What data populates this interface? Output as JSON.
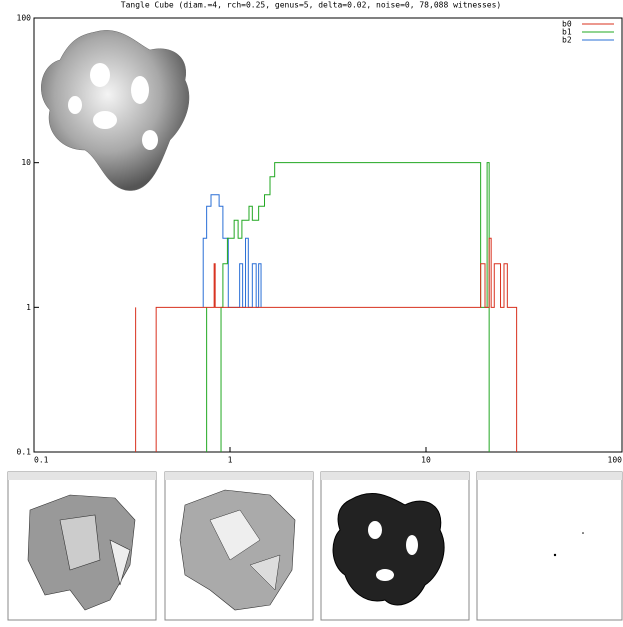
{
  "chart_data": {
    "type": "line",
    "title": "Tangle Cube (diam.=4, rch=0.25, genus=5, delta=0.02, noise=0, 78,088 witnesses)",
    "xlog": true,
    "ylog": true,
    "xlim": [
      0.1,
      100
    ],
    "ylim": [
      0.1,
      100
    ],
    "xticks": [
      0.1,
      1,
      10,
      100
    ],
    "yticks": [
      0.1,
      1,
      10,
      100
    ],
    "legend": "upper right",
    "series": [
      {
        "name": "b2",
        "color": "#2a6fd6",
        "x": [
          0.73,
          0.73,
          0.76,
          0.76,
          0.8,
          0.8,
          0.88,
          0.88,
          0.92,
          0.92,
          0.98,
          0.98,
          1.12,
          1.12,
          1.16,
          1.16,
          1.2,
          1.2,
          1.24,
          1.24,
          1.3,
          1.3,
          1.36,
          1.36,
          1.4,
          1.4,
          1.44,
          1.44
        ],
        "values": [
          1,
          3,
          3,
          5,
          5,
          6,
          6,
          5,
          5,
          3,
          3,
          1,
          1,
          2,
          2,
          1,
          1,
          3,
          3,
          1,
          1,
          2,
          2,
          1,
          1,
          2,
          2,
          1
        ]
      },
      {
        "name": "b1",
        "color": "#22a822",
        "x": [
          0.76,
          0.76,
          null,
          0.9,
          0.9,
          0.92,
          0.92,
          0.97,
          0.97,
          1.05,
          1.05,
          1.1,
          1.1,
          1.15,
          1.15,
          1.25,
          1.25,
          1.3,
          1.3,
          1.4,
          1.4,
          1.5,
          1.5,
          1.6,
          1.6,
          1.69,
          1.69,
          19,
          19,
          20.5,
          20.5,
          21,
          21
        ],
        "values": [
          0.1,
          1,
          null,
          0.1,
          1,
          1,
          2,
          2,
          3,
          3,
          4,
          4,
          3,
          3,
          4,
          4,
          5,
          5,
          4,
          4,
          5,
          5,
          6,
          6,
          8,
          8,
          10,
          10,
          1,
          1,
          10,
          10,
          0.1
        ]
      },
      {
        "name": "b0",
        "color": "#d8301e",
        "x": [
          0.33,
          0.33,
          null,
          0.42,
          0.42,
          0.83,
          0.83,
          0.84,
          0.84,
          19,
          19,
          20,
          20,
          21,
          21,
          21.5,
          21.5,
          22.3,
          22.3,
          24,
          24,
          25,
          25,
          26,
          26,
          29,
          29
        ],
        "values": [
          0.1,
          1,
          null,
          0.1,
          1,
          1,
          2,
          2,
          1,
          1,
          2,
          2,
          1,
          1,
          3,
          3,
          1,
          1,
          2,
          2,
          1,
          1,
          2,
          2,
          1,
          1,
          0.1
        ]
      }
    ]
  }
}
